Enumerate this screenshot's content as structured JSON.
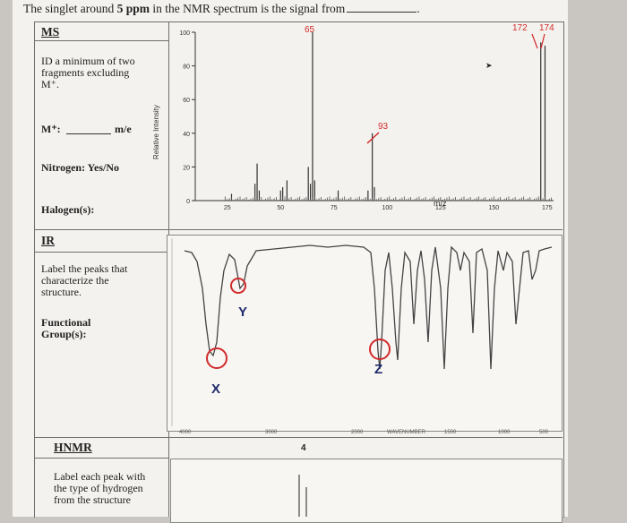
{
  "header": {
    "question_prefix": "The singlet around ",
    "question_bold": "5 ppm",
    "question_suffix": " in the NMR spectrum is the signal from"
  },
  "ms_section": {
    "title": "MS",
    "instruction": "ID a minimum of two fragments excluding M⁺.",
    "mplus_label": "M⁺:",
    "mplus_unit": "m/e",
    "nitrogen_label": "Nitrogen: Yes/No",
    "halogen_label": "Halogen(s):"
  },
  "ms_chart": {
    "chart_data": {
      "type": "bar",
      "ylabel": "Relative Intensity",
      "xlabel": "m/z",
      "ylim": [
        0,
        100
      ],
      "xlim": [
        10,
        178
      ],
      "y_ticks": [
        "100",
        "80",
        "60",
        "40",
        "20",
        "0"
      ],
      "x_ticks": [
        "25",
        "50",
        "75",
        "100",
        "125",
        "150",
        "175"
      ],
      "annotations": [
        "65",
        "93",
        "172",
        "174"
      ],
      "peaks": [
        {
          "x": 27,
          "y": 4
        },
        {
          "x": 38,
          "y": 10
        },
        {
          "x": 39,
          "y": 22
        },
        {
          "x": 40,
          "y": 6
        },
        {
          "x": 50,
          "y": 6
        },
        {
          "x": 51,
          "y": 8
        },
        {
          "x": 53,
          "y": 12
        },
        {
          "x": 63,
          "y": 20
        },
        {
          "x": 64,
          "y": 10
        },
        {
          "x": 65,
          "y": 100
        },
        {
          "x": 66,
          "y": 12
        },
        {
          "x": 77,
          "y": 6
        },
        {
          "x": 91,
          "y": 6
        },
        {
          "x": 93,
          "y": 40
        },
        {
          "x": 94,
          "y": 8
        },
        {
          "x": 172,
          "y": 94
        },
        {
          "x": 174,
          "y": 92
        }
      ]
    }
  },
  "ir_section": {
    "title": "IR",
    "instruction": "Label the peaks that characterize the structure.",
    "fg_label": "Functional Group(s):",
    "marks": [
      "X",
      "Y",
      "Z"
    ]
  },
  "hnmr_section": {
    "title": "HNMR",
    "instruction": "Label each peak with the type of hydrogen from the structure",
    "peak_label": "4"
  }
}
